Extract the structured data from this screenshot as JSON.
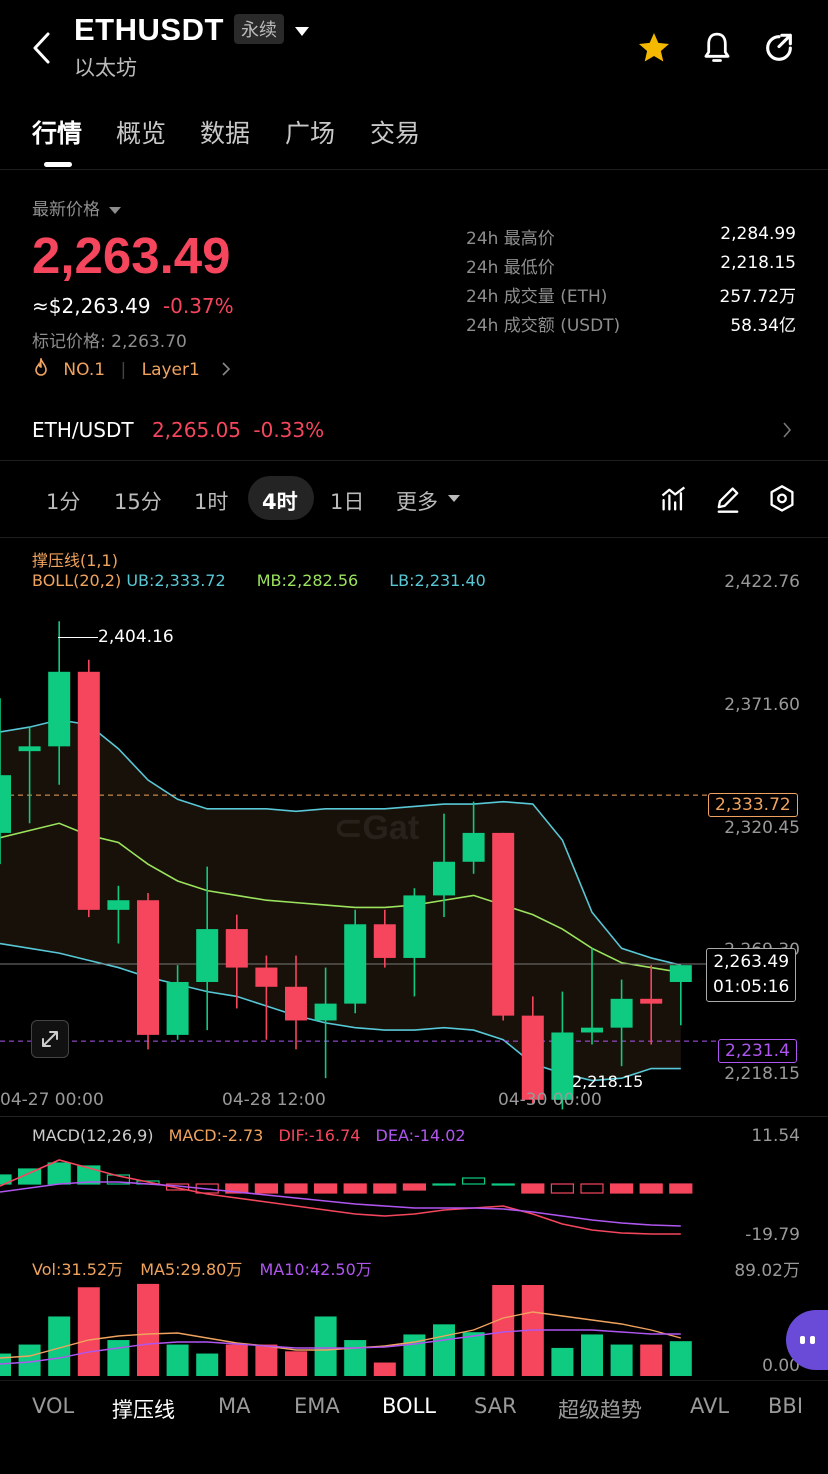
{
  "header": {
    "title": "ETHUSDT",
    "badge": "永续",
    "subtitle": "以太坊"
  },
  "tabs": [
    "行情",
    "概览",
    "数据",
    "广场",
    "交易"
  ],
  "price": {
    "label": "最新价格",
    "last": "2,263.49",
    "usd": "≈$2,263.49",
    "change": "-0.37%",
    "mark_label": "标记价格:",
    "mark": "2,263.70",
    "rank": "NO.1",
    "tag": "Layer1"
  },
  "stats": [
    {
      "label": "24h 最高价",
      "value": "2,284.99"
    },
    {
      "label": "24h 最低价",
      "value": "2,218.15"
    },
    {
      "label": "24h 成交量 (ETH)",
      "value": "257.72万"
    },
    {
      "label": "24h 成交额 (USDT)",
      "value": "58.34亿"
    }
  ],
  "spot": {
    "pair": "ETH/USDT",
    "price": "2,265.05",
    "change": "-0.33%"
  },
  "periods": [
    "1分",
    "15分",
    "1时",
    "4时",
    "1日",
    "更多"
  ],
  "chart": {
    "indicator_title": "撑压线(1,1)",
    "boll_label": "BOLL(20,2)",
    "ub": "UB:2,333.72",
    "mb": "MB:2,282.56",
    "lb": "LB:2,231.40",
    "axis": [
      "2,422.76",
      "2,371.60",
      "2,320.45",
      "2,269.30",
      "2,218.15"
    ],
    "high_marker": "2,404.16",
    "low_marker": "2,218.15",
    "ub_tag": "2,333.72",
    "current_tag": "2,263.49",
    "countdown": "01:05:16",
    "lb_tag": "2,231.4",
    "x_labels": [
      "04-27 00:00",
      "04-28 12:00",
      "04-30 00:00"
    ],
    "colors": {
      "up": "#0ecb81",
      "down": "#f6465d",
      "ub": "#58c7d6",
      "mb": "#9be35d",
      "lb": "#58c7d6"
    }
  },
  "macd": {
    "label": "MACD(12,26,9)",
    "macd": "MACD:-2.73",
    "dif": "DIF:-16.74",
    "dea": "DEA:-14.02",
    "max": "11.54",
    "min": "-19.79"
  },
  "vol": {
    "label": "Vol:31.52万",
    "ma5": "MA5:29.80万",
    "ma10": "MA10:42.50万",
    "max": "89.02万",
    "min": "0.00"
  },
  "indicator_tabs": [
    "VOL",
    "撑压线",
    "MA",
    "EMA",
    "BOLL",
    "SAR",
    "超级趋势",
    "AVL",
    "BBI"
  ],
  "candles": [
    {
      "o": 2318,
      "h": 2374,
      "l": 2305,
      "c": 2342,
      "v": 20
    },
    {
      "o": 2352,
      "h": 2362,
      "l": 2322,
      "c": 2354,
      "v": 28
    },
    {
      "o": 2354,
      "h": 2406,
      "l": 2338,
      "c": 2385,
      "v": 53
    },
    {
      "o": 2385,
      "h": 2390,
      "l": 2283,
      "c": 2286,
      "v": 79
    },
    {
      "o": 2286,
      "h": 2296,
      "l": 2272,
      "c": 2290,
      "v": 32
    },
    {
      "o": 2290,
      "h": 2293,
      "l": 2228,
      "c": 2234,
      "v": 82
    },
    {
      "o": 2234,
      "h": 2263,
      "l": 2232,
      "c": 2256,
      "v": 28
    },
    {
      "o": 2256,
      "h": 2304,
      "l": 2236,
      "c": 2278,
      "v": 20
    },
    {
      "o": 2278,
      "h": 2284,
      "l": 2245,
      "c": 2262,
      "v": 28
    },
    {
      "o": 2262,
      "h": 2267,
      "l": 2232,
      "c": 2254,
      "v": 28
    },
    {
      "o": 2254,
      "h": 2267,
      "l": 2228,
      "c": 2240,
      "v": 22
    },
    {
      "o": 2240,
      "h": 2262,
      "l": 2216,
      "c": 2247,
      "v": 53
    },
    {
      "o": 2247,
      "h": 2286,
      "l": 2243,
      "c": 2280,
      "v": 32
    },
    {
      "o": 2280,
      "h": 2286,
      "l": 2262,
      "c": 2266,
      "v": 12
    },
    {
      "o": 2266,
      "h": 2295,
      "l": 2250,
      "c": 2292,
      "v": 37
    },
    {
      "o": 2292,
      "h": 2326,
      "l": 2283,
      "c": 2306,
      "v": 46
    },
    {
      "o": 2306,
      "h": 2331,
      "l": 2301,
      "c": 2318,
      "v": 39
    },
    {
      "o": 2318,
      "h": 2318,
      "l": 2240,
      "c": 2242,
      "v": 81
    },
    {
      "o": 2242,
      "h": 2250,
      "l": 2205,
      "c": 2207,
      "v": 81
    },
    {
      "o": 2207,
      "h": 2252,
      "l": 2203,
      "c": 2235,
      "v": 25
    },
    {
      "o": 2235,
      "h": 2270,
      "l": 2230,
      "c": 2237,
      "v": 37
    },
    {
      "o": 2237,
      "h": 2257,
      "l": 2221,
      "c": 2249,
      "v": 28
    },
    {
      "o": 2249,
      "h": 2263,
      "l": 2230,
      "c": 2247,
      "v": 28
    },
    {
      "o": 2256,
      "h": 2263,
      "l": 2238,
      "c": 2263,
      "v": 31
    }
  ]
}
